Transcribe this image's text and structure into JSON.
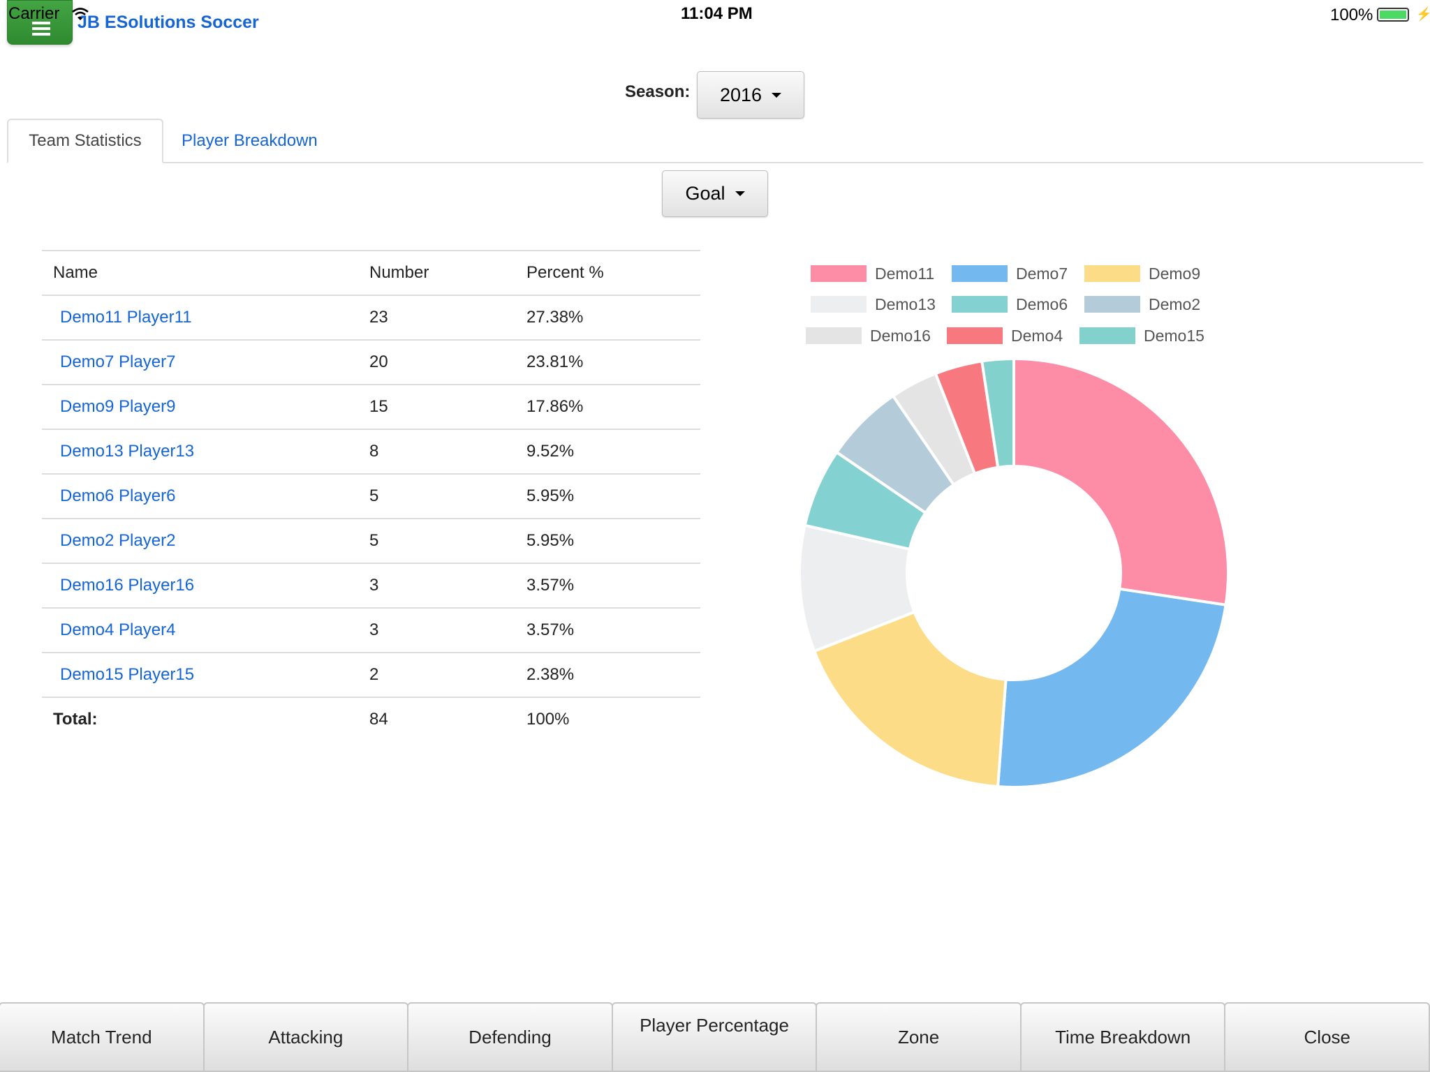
{
  "status_bar": {
    "carrier": "Carrier",
    "time": "11:04 PM",
    "battery": "100%"
  },
  "header": {
    "title": "JB ESolutions Soccer"
  },
  "season": {
    "label": "Season:",
    "value": "2016"
  },
  "tabs": [
    {
      "label": "Team Statistics",
      "active": true
    },
    {
      "label": "Player Breakdown",
      "active": false
    }
  ],
  "stat_type": {
    "value": "Goal"
  },
  "table": {
    "headers": [
      "Name",
      "Number",
      "Percent %"
    ],
    "rows": [
      {
        "name": "Demo11 Player11",
        "number": "23",
        "percent": "27.38%"
      },
      {
        "name": "Demo7 Player7",
        "number": "20",
        "percent": "23.81%"
      },
      {
        "name": "Demo9 Player9",
        "number": "15",
        "percent": "17.86%"
      },
      {
        "name": "Demo13 Player13",
        "number": "8",
        "percent": "9.52%"
      },
      {
        "name": "Demo6 Player6",
        "number": "5",
        "percent": "5.95%"
      },
      {
        "name": "Demo2 Player2",
        "number": "5",
        "percent": "5.95%"
      },
      {
        "name": "Demo16 Player16",
        "number": "3",
        "percent": "3.57%"
      },
      {
        "name": "Demo4 Player4",
        "number": "3",
        "percent": "3.57%"
      },
      {
        "name": "Demo15 Player15",
        "number": "2",
        "percent": "2.38%"
      }
    ],
    "total": {
      "label": "Total:",
      "number": "84",
      "percent": "100%"
    }
  },
  "chart_data": {
    "type": "pie",
    "donut": true,
    "legend_position": "top",
    "labels": [
      "Demo11",
      "Demo7",
      "Demo9",
      "Demo13",
      "Demo6",
      "Demo2",
      "Demo16",
      "Demo4",
      "Demo15"
    ],
    "values": [
      23,
      20,
      15,
      8,
      5,
      5,
      3,
      3,
      2
    ],
    "colors": [
      "#fd8ca6",
      "#74b8f0",
      "#fddc87",
      "#eceef0",
      "#83d1d0",
      "#b4cbd9",
      "#e4e4e4",
      "#f7797f",
      "#83d1cd"
    ]
  },
  "toolbar": [
    "Match Trend",
    "Attacking",
    "Defending",
    "Player Percentage",
    "Zone",
    "Time Breakdown",
    "Close"
  ]
}
